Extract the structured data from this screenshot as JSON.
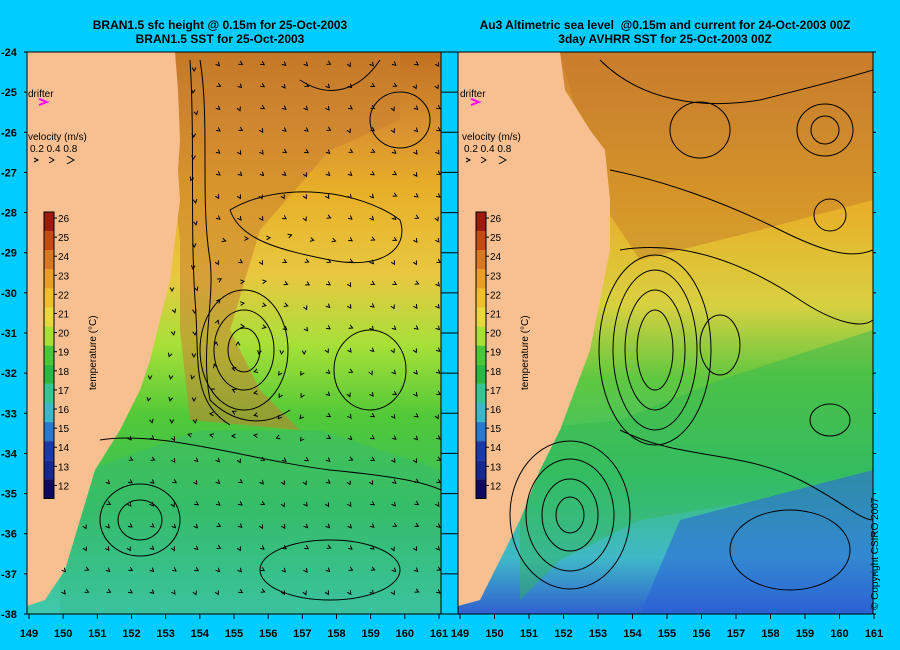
{
  "left_panel": {
    "title_line1": "BRAN1.5 sfc height @ 0.15m for 25-Oct-2003",
    "title_line2": "BRAN1.5 SST for 25-Oct-2003"
  },
  "right_panel": {
    "title_line1": "Au3 Altimetric sea level  @0.15m and current for 24-Oct-2003 00Z",
    "title_line2": "3day AVHRR SST for 25-Oct-2003 00Z"
  },
  "legend": {
    "drifter_label": "drifter",
    "velocity_label": "velocity (m/s)",
    "velocity_values": "0.2 0.4 0.8",
    "colorbar_label": "temperature (°C)",
    "colorbar_ticks": [
      "26",
      "25",
      "24",
      "23",
      "22",
      "21",
      "20",
      "19",
      "18",
      "17",
      "16",
      "15",
      "14",
      "13",
      "12"
    ],
    "colorbar_colors": [
      "#a01810",
      "#c84818",
      "#d87820",
      "#e8a020",
      "#f0c028",
      "#e8d838",
      "#a8e030",
      "#48c838",
      "#28b848",
      "#30c890",
      "#38b8c8",
      "#2878d0",
      "#1838b0",
      "#182890",
      "#100860"
    ]
  },
  "axes": {
    "lat_labels": [
      "-24",
      "-25",
      "-26",
      "-27",
      "-28",
      "-29",
      "-30",
      "-31",
      "-32",
      "-33",
      "-34",
      "-35",
      "-36",
      "-37",
      "-38"
    ],
    "lon_labels": [
      "149",
      "150",
      "151",
      "152",
      "153",
      "154",
      "155",
      "156",
      "157",
      "158",
      "159",
      "160",
      "161"
    ]
  },
  "copyright": "© Copyright CSIRO 2007",
  "colors": {
    "background": "#00ccff",
    "land": "#f8c090",
    "drifter": "#ff00ff"
  }
}
